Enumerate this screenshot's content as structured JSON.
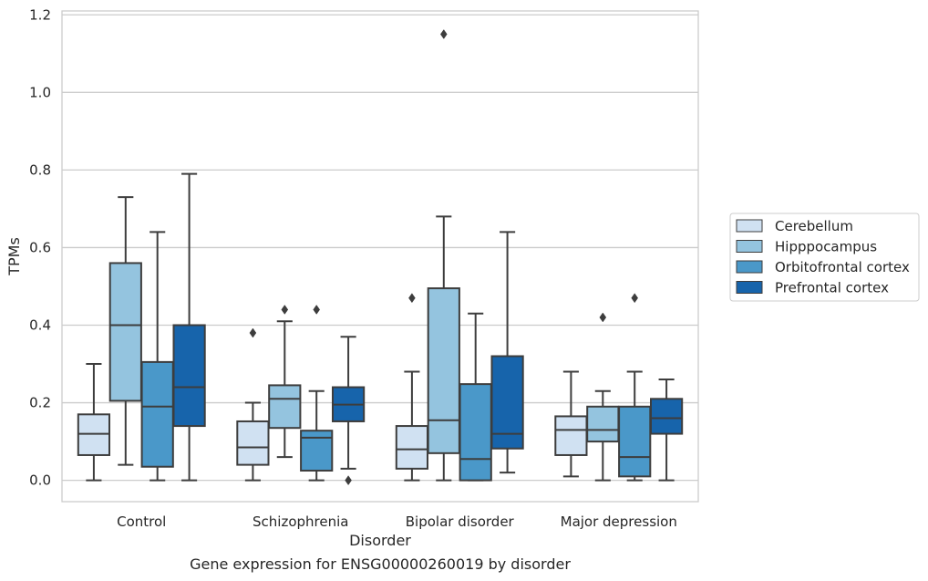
{
  "chart_data": {
    "type": "boxplot",
    "title": "",
    "caption": "Gene expression for ENSG00000260019 by disorder",
    "xlabel": "Disorder",
    "ylabel": "TPMs",
    "ylim": [
      -0.055,
      1.21
    ],
    "yticks": [
      0.0,
      0.2,
      0.4,
      0.6,
      0.8,
      1.0,
      1.2
    ],
    "ytick_labels": [
      "0.0",
      "0.2",
      "0.4",
      "0.6",
      "0.8",
      "1.0",
      "1.2"
    ],
    "grid": "horizontal",
    "legend_position": "right",
    "categories": [
      "Control",
      "Schizophrenia",
      "Bipolar disorder",
      "Major depression"
    ],
    "series": [
      {
        "name": "Cerebellum",
        "color": "#d0e1f2",
        "boxes": [
          {
            "whislo": 0.0,
            "q1": 0.065,
            "med": 0.12,
            "q3": 0.17,
            "whishi": 0.3,
            "fliers": []
          },
          {
            "whislo": 0.0,
            "q1": 0.04,
            "med": 0.085,
            "q3": 0.152,
            "whishi": 0.2,
            "fliers": [
              0.38
            ]
          },
          {
            "whislo": 0.0,
            "q1": 0.03,
            "med": 0.08,
            "q3": 0.14,
            "whishi": 0.28,
            "fliers": [
              0.47
            ]
          },
          {
            "whislo": 0.01,
            "q1": 0.065,
            "med": 0.13,
            "q3": 0.165,
            "whishi": 0.28,
            "fliers": []
          }
        ]
      },
      {
        "name": "Hipppocampus",
        "color": "#94c4df",
        "boxes": [
          {
            "whislo": 0.04,
            "q1": 0.205,
            "med": 0.4,
            "q3": 0.56,
            "whishi": 0.73,
            "fliers": []
          },
          {
            "whislo": 0.06,
            "q1": 0.135,
            "med": 0.21,
            "q3": 0.245,
            "whishi": 0.41,
            "fliers": [
              0.44
            ]
          },
          {
            "whislo": 0.0,
            "q1": 0.07,
            "med": 0.155,
            "q3": 0.495,
            "whishi": 0.68,
            "fliers": [
              1.15
            ]
          },
          {
            "whislo": 0.0,
            "q1": 0.1,
            "med": 0.13,
            "q3": 0.19,
            "whishi": 0.23,
            "fliers": [
              0.42
            ]
          }
        ]
      },
      {
        "name": "Orbitofrontal cortex",
        "color": "#4a98c9",
        "boxes": [
          {
            "whislo": 0.0,
            "q1": 0.035,
            "med": 0.19,
            "q3": 0.305,
            "whishi": 0.64,
            "fliers": []
          },
          {
            "whislo": 0.0,
            "q1": 0.025,
            "med": 0.11,
            "q3": 0.128,
            "whishi": 0.23,
            "fliers": [
              0.44
            ]
          },
          {
            "whislo": 0.0,
            "q1": 0.0,
            "med": 0.055,
            "q3": 0.248,
            "whishi": 0.43,
            "fliers": []
          },
          {
            "whislo": 0.0,
            "q1": 0.01,
            "med": 0.06,
            "q3": 0.19,
            "whishi": 0.28,
            "fliers": [
              0.47
            ]
          }
        ]
      },
      {
        "name": "Prefrontal cortex",
        "color": "#1764ab",
        "boxes": [
          {
            "whislo": 0.0,
            "q1": 0.14,
            "med": 0.24,
            "q3": 0.4,
            "whishi": 0.79,
            "fliers": []
          },
          {
            "whislo": 0.03,
            "q1": 0.152,
            "med": 0.195,
            "q3": 0.24,
            "whishi": 0.37,
            "fliers": [
              0.0
            ]
          },
          {
            "whislo": 0.02,
            "q1": 0.082,
            "med": 0.12,
            "q3": 0.32,
            "whishi": 0.64,
            "fliers": []
          },
          {
            "whislo": 0.0,
            "q1": 0.12,
            "med": 0.16,
            "q3": 0.21,
            "whishi": 0.26,
            "fliers": []
          }
        ]
      }
    ]
  },
  "colors": {
    "edge": "#3d3d3d",
    "grid": "#cccccc",
    "frame": "#cccccc",
    "background": "#ffffff"
  }
}
